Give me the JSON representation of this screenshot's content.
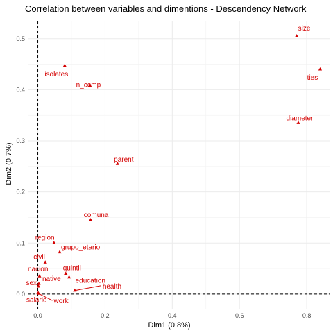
{
  "chart_data": {
    "type": "scatter",
    "title": "Correlation between variables and dimentions - Descendency Network",
    "xlabel": "Dim1 (0.8%)",
    "ylabel": "Dim2 (0.7%)",
    "xlim": [
      -0.03,
      0.87
    ],
    "ylim": [
      -0.03,
      0.535
    ],
    "x_ticks": [
      0.0,
      0.2,
      0.4,
      0.6,
      0.8
    ],
    "y_ticks": [
      0.0,
      0.1,
      0.2,
      0.3,
      0.4,
      0.5
    ],
    "x_tick_labels": [
      "0.0",
      "0.2",
      "0.4",
      "0.6",
      "0.8"
    ],
    "y_tick_labels": [
      "0.0",
      "0.1",
      "0.2",
      "0.3",
      "0.4",
      "0.5"
    ],
    "grid": true,
    "reference_lines": {
      "x": 0,
      "y": 0,
      "style": "dashed"
    },
    "point_color": "#d40000",
    "points": [
      {
        "label": "size",
        "x": 0.77,
        "y": 0.505
      },
      {
        "label": "ties",
        "x": 0.84,
        "y": 0.44
      },
      {
        "label": "isolates",
        "x": 0.08,
        "y": 0.447
      },
      {
        "label": "n_comp",
        "x": 0.155,
        "y": 0.408
      },
      {
        "label": "diameter",
        "x": 0.775,
        "y": 0.335
      },
      {
        "label": "parent",
        "x": 0.237,
        "y": 0.255
      },
      {
        "label": "comuna",
        "x": 0.157,
        "y": 0.145
      },
      {
        "label": "region",
        "x": 0.048,
        "y": 0.1
      },
      {
        "label": "grupo_etario",
        "x": 0.065,
        "y": 0.082
      },
      {
        "label": "civil",
        "x": 0.022,
        "y": 0.062
      },
      {
        "label": "quintil",
        "x": 0.083,
        "y": 0.04
      },
      {
        "label": "nacion",
        "x": 0.005,
        "y": 0.035
      },
      {
        "label": "education",
        "x": 0.093,
        "y": 0.033
      },
      {
        "label": "native",
        "x": 0.003,
        "y": 0.02
      },
      {
        "label": "sex",
        "x": 0.002,
        "y": 0.015
      },
      {
        "label": "health",
        "x": 0.11,
        "y": 0.007
      },
      {
        "label": "salario",
        "x": 0.001,
        "y": 0.002
      },
      {
        "label": "work",
        "x": 0.002,
        "y": 0.001
      }
    ]
  }
}
